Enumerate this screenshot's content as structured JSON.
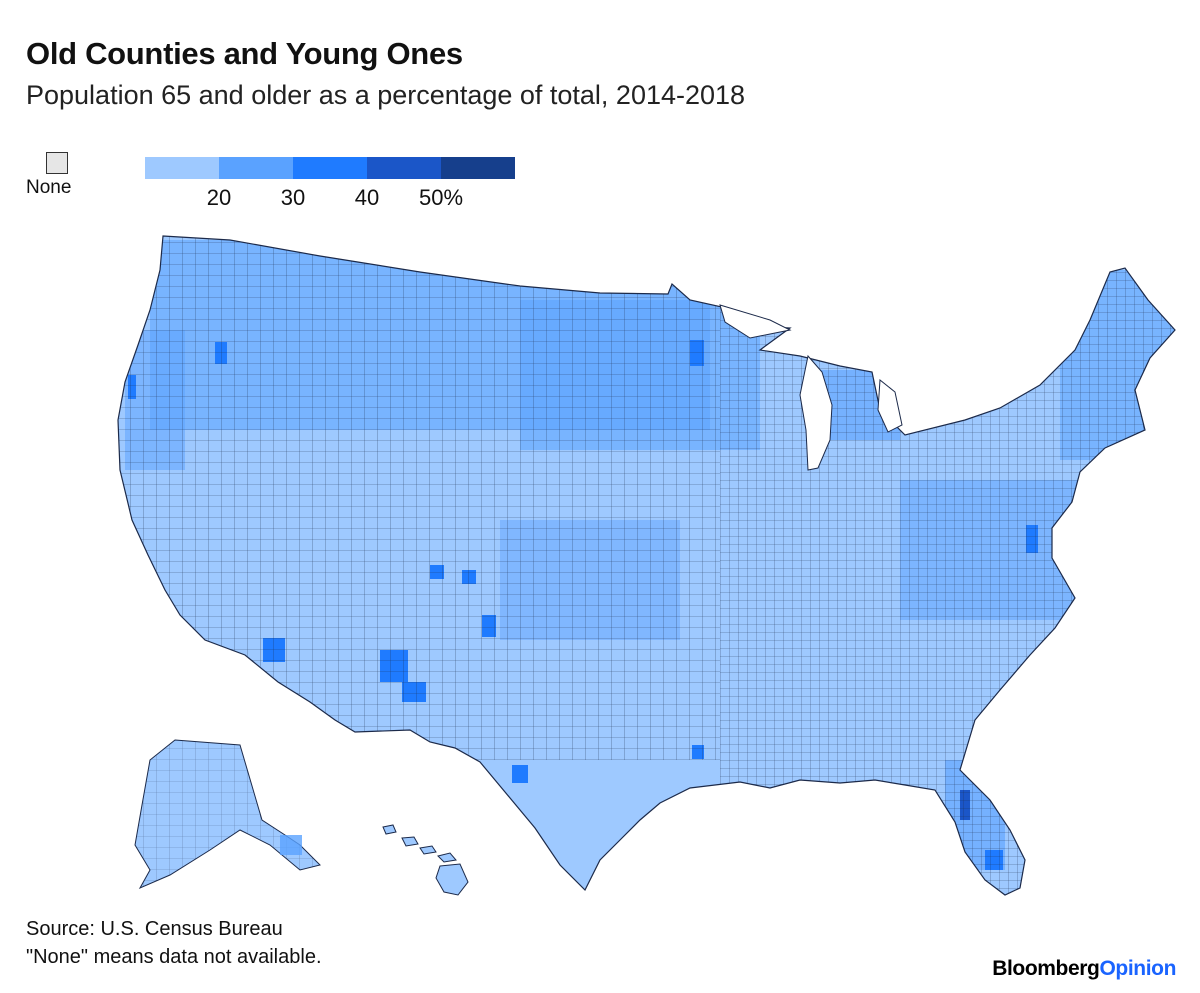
{
  "header": {
    "title": "Old Counties and Young Ones",
    "subtitle": "Population 65 and older as a percentage of total, 2014-2018"
  },
  "legend": {
    "none_label": "None",
    "none_color": "#e6e6e6",
    "bins": [
      "#9ec9ff",
      "#5aa2ff",
      "#1f7bff",
      "#1b56c8",
      "#163f8c"
    ],
    "ticks": [
      "20",
      "30",
      "40",
      "50%"
    ]
  },
  "map": {
    "region": "United States counties",
    "land_color": "#9ec9ff",
    "mid_color": "#5aa2ff",
    "high_color": "#1f7bff",
    "border_color": "#1c2a4a"
  },
  "footer": {
    "source": "Source: U.S. Census Bureau",
    "note": "\"None\" means data not available."
  },
  "brand": {
    "part1": "Bloomberg",
    "part2": "Opinion"
  }
}
